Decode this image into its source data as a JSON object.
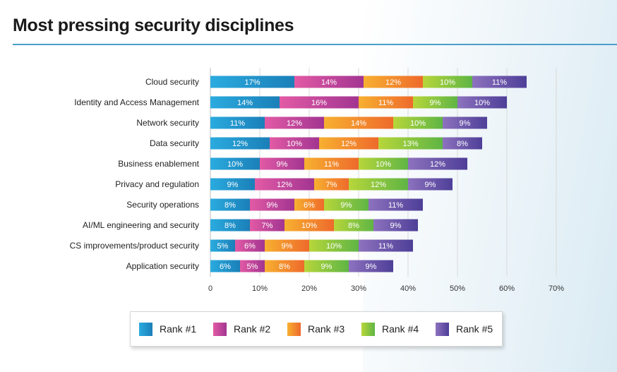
{
  "title": "Most pressing security disciplines",
  "colors": {
    "rank1": [
      "#2aabdf",
      "#1b7fb8"
    ],
    "rank2": [
      "#e25aa5",
      "#a23591"
    ],
    "rank3": [
      "#f7b030",
      "#ee6a2c"
    ],
    "rank4": [
      "#b7d63a",
      "#5fb545"
    ],
    "rank5": [
      "#8d72be",
      "#4e3f98"
    ],
    "title_rule": "#4a9ec9",
    "grid": "#d9d9d9"
  },
  "legend": [
    {
      "label": "Rank #1",
      "color_key": "rank1"
    },
    {
      "label": "Rank #2",
      "color_key": "rank2"
    },
    {
      "label": "Rank #3",
      "color_key": "rank3"
    },
    {
      "label": "Rank #4",
      "color_key": "rank4"
    },
    {
      "label": "Rank #5",
      "color_key": "rank5"
    }
  ],
  "chart_data": {
    "type": "bar",
    "orientation": "horizontal",
    "stacked": true,
    "title": "Most pressing security disciplines",
    "xlabel": "",
    "ylabel": "",
    "xlim": [
      0,
      70
    ],
    "xticks": [
      "0",
      "10%",
      "20%",
      "30%",
      "40%",
      "50%",
      "60%",
      "70%"
    ],
    "grid": true,
    "legend_position": "bottom",
    "categories": [
      "Cloud security",
      "Identity and Access Management",
      "Network security",
      "Data security",
      "Business enablement",
      "Privacy and regulation",
      "Security operations",
      "AI/ML engineering and security",
      "CS improvements/product security",
      "Application security"
    ],
    "series": [
      {
        "name": "Rank #1",
        "values": [
          17,
          14,
          11,
          12,
          10,
          9,
          8,
          8,
          5,
          6
        ]
      },
      {
        "name": "Rank #2",
        "values": [
          14,
          16,
          12,
          10,
          9,
          12,
          9,
          7,
          6,
          5
        ]
      },
      {
        "name": "Rank #3",
        "values": [
          12,
          11,
          14,
          12,
          11,
          7,
          6,
          10,
          9,
          8
        ]
      },
      {
        "name": "Rank #4",
        "values": [
          10,
          9,
          10,
          13,
          10,
          12,
          9,
          8,
          10,
          9
        ]
      },
      {
        "name": "Rank #5",
        "values": [
          11,
          10,
          9,
          8,
          12,
          9,
          11,
          9,
          11,
          9
        ]
      }
    ]
  }
}
